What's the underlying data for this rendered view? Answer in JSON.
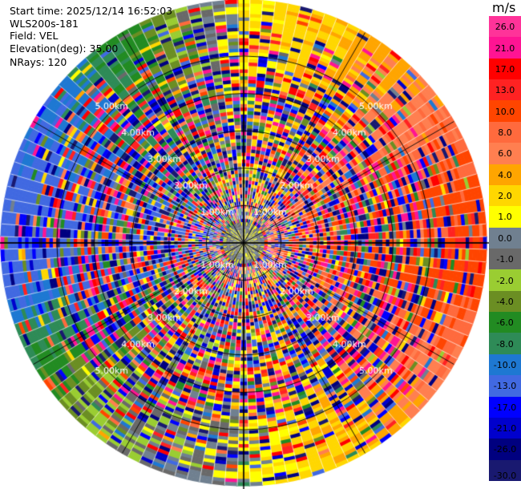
{
  "header": {
    "start_time": "Start time: 2025/12/14 16:52:03",
    "instrument": "WLS200s-181",
    "field": "Field: VEL",
    "elevation": "Elevation(deg): 35.00",
    "nrays": "NRays: 120"
  },
  "colorbar": {
    "unit": "m/s",
    "labels": [
      "26.0",
      "21.0",
      "17.0",
      "13.0",
      "10.0",
      "8.0",
      "6.0",
      "4.0",
      "2.0",
      "1.0",
      "0.0",
      "-1.0",
      "-2.0",
      "-4.0",
      "-6.0",
      "-8.0",
      "-10.0",
      "-13.0",
      "-17.0",
      "-21.0",
      "-26.0",
      "-30.0"
    ],
    "colors": [
      "#ff3399",
      "#ff1493",
      "#ff0000",
      "#ff2222",
      "#ff4500",
      "#ff6a3d",
      "#ff7f50",
      "#ffa500",
      "#ffd700",
      "#ffff00",
      "#708090",
      "#696969",
      "#9acd32",
      "#6b8e23",
      "#228b22",
      "#2e8b57",
      "#1e78d2",
      "#4169e1",
      "#0000ff",
      "#0000cd",
      "#000080",
      "#191970"
    ]
  },
  "chart_data": {
    "type": "heatmap",
    "field": "VEL",
    "unit": "m/s",
    "n_rays": 120,
    "elevation_deg": 35.0,
    "range_ring_labels": [
      "1.00km",
      "2.00km",
      "3.00km",
      "4.00km",
      "5.00km"
    ],
    "range_rings_km": [
      1,
      2,
      3,
      4,
      5
    ],
    "max_range_km": 6.5,
    "color_levels": [
      26.0,
      21.0,
      17.0,
      13.0,
      10.0,
      8.0,
      6.0,
      4.0,
      2.0,
      1.0,
      0.0,
      -1.0,
      -2.0,
      -4.0,
      -6.0,
      -8.0,
      -10.0,
      -13.0,
      -17.0,
      -21.0,
      -26.0,
      -30.0
    ],
    "dominant_outer_velocity_by_azimuth": [
      {
        "sector": "north",
        "value": 2.0
      },
      {
        "sector": "north-east",
        "value": 6.0
      },
      {
        "sector": "east",
        "value": 13.0
      },
      {
        "sector": "south-east",
        "value": 6.0
      },
      {
        "sector": "south",
        "value": 1.0
      },
      {
        "sector": "south-west",
        "value": -2.0
      },
      {
        "sector": "west",
        "value": -13.0
      },
      {
        "sector": "north-west",
        "value": -8.0
      }
    ]
  }
}
